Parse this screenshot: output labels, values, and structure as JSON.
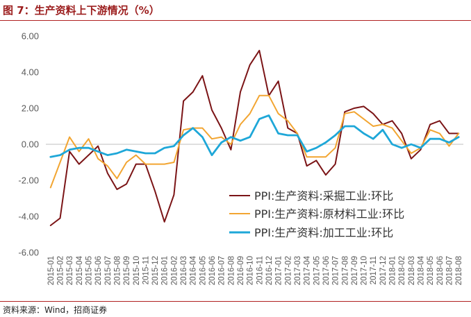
{
  "header": {
    "title": "图 7：生产资料上下游情况（%）"
  },
  "footer": {
    "source": "资料来源：Wind，招商证券"
  },
  "chart_data": {
    "type": "line",
    "title": "",
    "xlabel": "",
    "ylabel": "",
    "ylim": [
      -6,
      6
    ],
    "yticks": [
      6,
      4,
      2,
      0,
      -2,
      -4,
      -6
    ],
    "ytick_labels": [
      "6.00",
      "4.00",
      "2.00",
      "0.00",
      "-2.00",
      "-4.00",
      "-6.00"
    ],
    "grid": false,
    "legend_position": "center-right",
    "x": [
      "2015-01",
      "2015-02",
      "2015-03",
      "2015-04",
      "2015-05",
      "2015-06",
      "2015-07",
      "2015-08",
      "2015-09",
      "2015-10",
      "2015-11",
      "2015-12",
      "2016-01",
      "2016-02",
      "2016-03",
      "2016-04",
      "2016-05",
      "2016-06",
      "2016-07",
      "2016-08",
      "2016-09",
      "2016-10",
      "2016-11",
      "2016-12",
      "2017-01",
      "2017-02",
      "2017-03",
      "2017-04",
      "2017-05",
      "2017-06",
      "2017-07",
      "2017-08",
      "2017-09",
      "2017-10",
      "2017-11",
      "2017-12",
      "2018-01",
      "2018-02",
      "2018-03",
      "2018-04",
      "2018-05",
      "2018-06",
      "2018-07",
      "2018-08"
    ],
    "series": [
      {
        "name": "PPI:生产资料:采掘工业:环比",
        "color": "#7b1416",
        "values": [
          -4.5,
          -4.1,
          -0.4,
          -1.1,
          -0.6,
          -0.1,
          -1.6,
          -2.5,
          -2.2,
          -1.1,
          -1.1,
          -2.6,
          -4.3,
          -2.8,
          2.4,
          2.9,
          3.8,
          1.9,
          0.9,
          -0.3,
          2.9,
          4.4,
          5.2,
          2.7,
          3.5,
          0.9,
          0.6,
          -1.2,
          -0.9,
          -1.7,
          -1.1,
          1.8,
          2.0,
          2.1,
          1.7,
          1.1,
          1.3,
          0.6,
          -0.8,
          -0.3,
          1.1,
          1.3,
          0.6,
          0.6
        ]
      },
      {
        "name": "PPI:生产资料:原材料工业:环比",
        "color": "#f2a531",
        "values": [
          -2.4,
          -1.0,
          0.4,
          -0.4,
          0.3,
          -0.8,
          -1.2,
          -1.9,
          -1.0,
          -0.6,
          -1.1,
          -1.1,
          -1.1,
          -1.0,
          0.8,
          0.9,
          0.9,
          0.3,
          0.4,
          0.0,
          1.1,
          1.7,
          2.7,
          2.7,
          1.7,
          1.3,
          0.6,
          -0.7,
          -0.7,
          -0.7,
          -0.2,
          1.7,
          1.8,
          1.4,
          1.0,
          1.1,
          0.9,
          0.2,
          -0.5,
          -0.2,
          0.8,
          0.6,
          -0.1,
          0.6
        ]
      },
      {
        "name": "PPI:生产资料:加工工业:环比",
        "color": "#1ea7d8",
        "values": [
          -0.7,
          -0.6,
          -0.3,
          -0.2,
          -0.2,
          -0.4,
          -0.6,
          -0.5,
          -0.3,
          -0.4,
          -0.5,
          -0.5,
          -0.2,
          -0.1,
          0.5,
          0.9,
          0.4,
          -0.6,
          0.1,
          0.4,
          0.2,
          0.4,
          1.4,
          1.6,
          0.6,
          0.5,
          0.5,
          -0.4,
          -0.2,
          0.1,
          0.5,
          1.0,
          1.0,
          0.6,
          0.3,
          0.8,
          0.0,
          -0.2,
          0.0,
          -0.2,
          0.3,
          0.3,
          0.1,
          0.4
        ]
      }
    ]
  }
}
